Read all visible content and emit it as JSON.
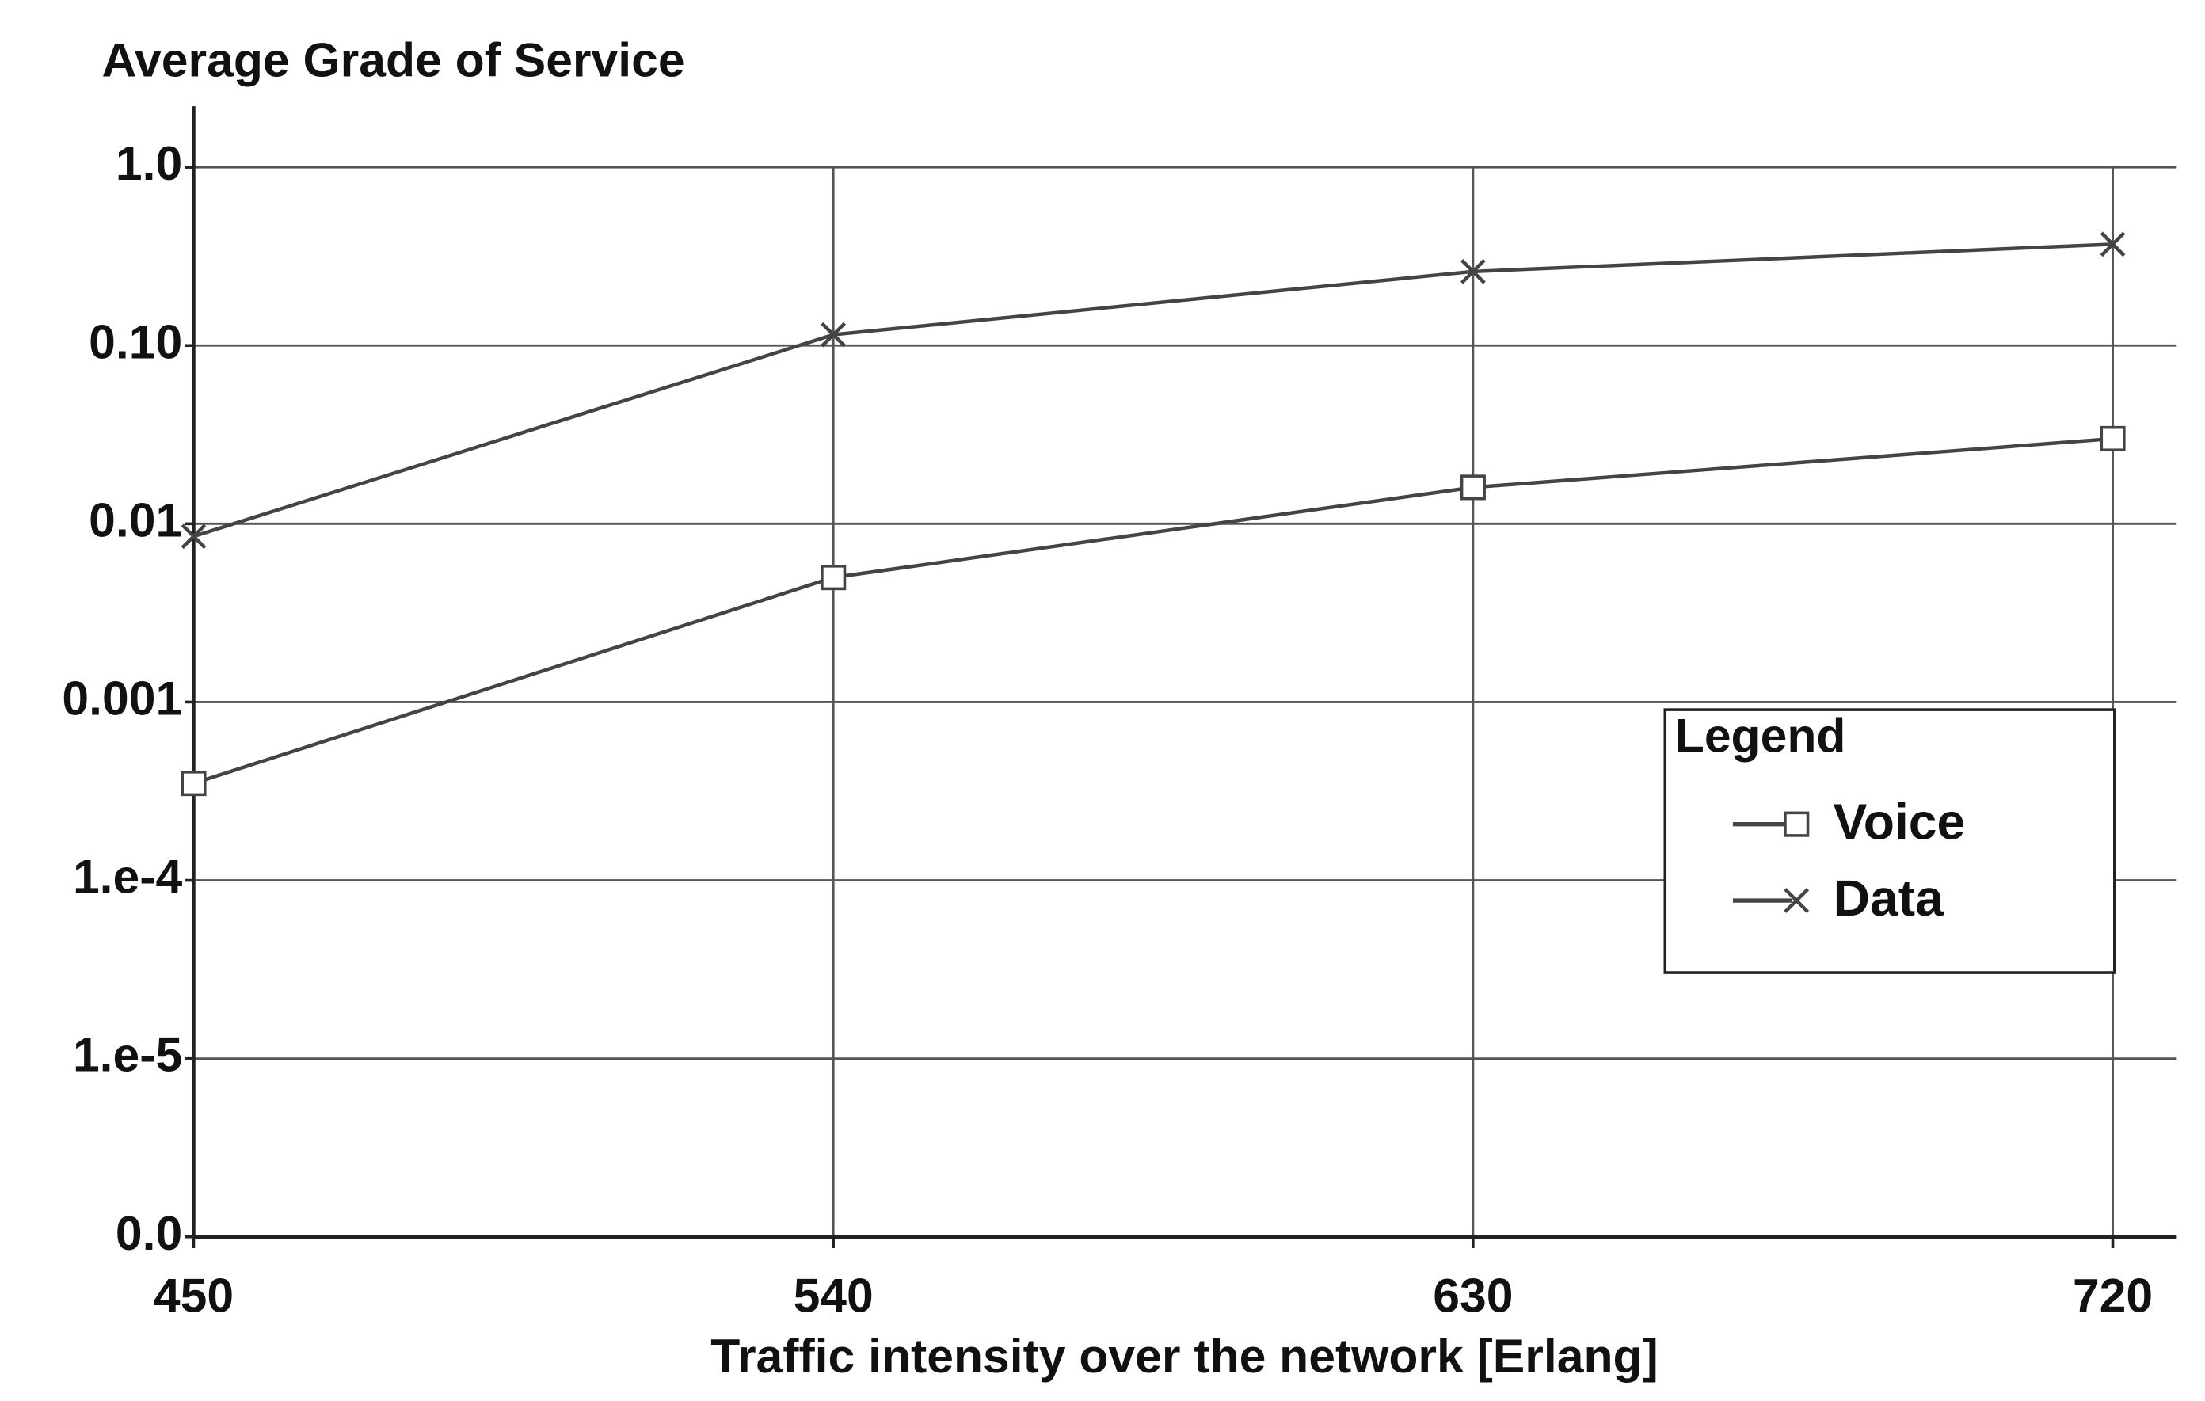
{
  "chart_data": {
    "type": "line",
    "title": "Average Grade of Service",
    "x_label": "Traffic intensity over the network [Erlang]",
    "x": [
      450,
      540,
      630,
      720
    ],
    "xlim": [
      450,
      729
    ],
    "xticks": [
      450,
      540,
      630,
      720
    ],
    "yscale": "log",
    "ylim": [
      1e-06,
      2.2
    ],
    "yticks": [
      {
        "value": 1,
        "label": "1.0"
      },
      {
        "value": 0.1,
        "label": "0.10"
      },
      0.01,
      0.001,
      {
        "value": 0.0001,
        "label": "1.e-4"
      },
      {
        "value": 1e-05,
        "label": "1.e-5"
      },
      {
        "value": 1e-06,
        "label": "0.0"
      }
    ],
    "grid": true,
    "legend": {
      "title": "Legend",
      "position": "right"
    },
    "series": [
      {
        "name": "Voice",
        "color": "#444444",
        "marker": "square",
        "values": [
          0.00035,
          0.005,
          0.016,
          0.03
        ]
      },
      {
        "name": "Data",
        "color": "#444444",
        "marker": "x",
        "values": [
          0.0085,
          0.115,
          0.26,
          0.37
        ]
      }
    ]
  }
}
